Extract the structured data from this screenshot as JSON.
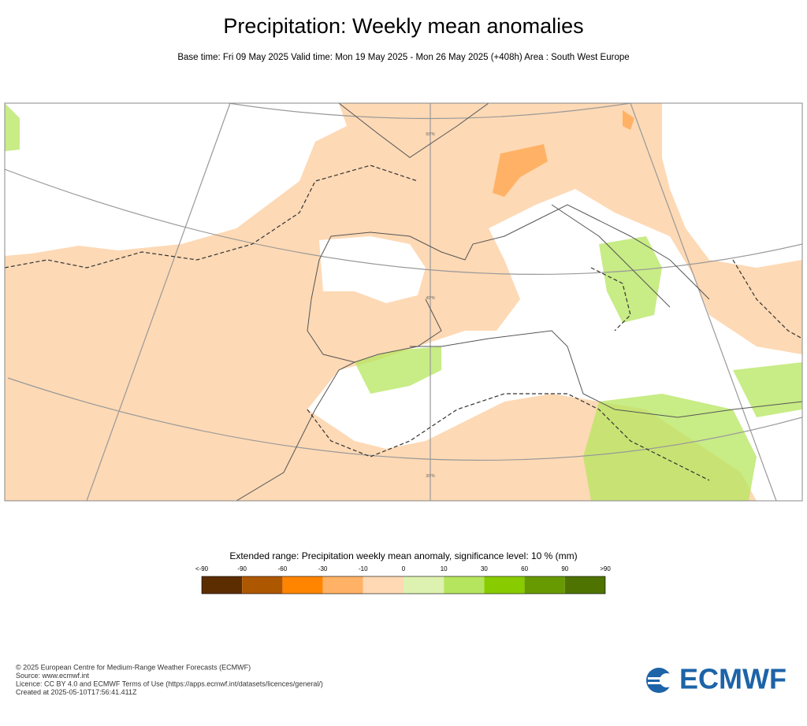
{
  "header": {
    "title": "Precipitation: Weekly mean anomalies",
    "subtitle": "Base time: Fri 09 May 2025 Valid time: Mon 19 May 2025 - Mon 26 May 2025 (+408h) Area : South West Europe"
  },
  "map": {
    "lat_labels": [
      "50°N",
      "40°N",
      "30°N"
    ]
  },
  "legend": {
    "title": "Extended range: Precipitation weekly mean anomaly, significance level: 10 % (mm)",
    "labels": [
      "<-90",
      "-90",
      "-60",
      "-30",
      "-10",
      "0",
      "10",
      "30",
      "60",
      "90",
      ">90"
    ],
    "colors": [
      "#5c2d00",
      "#ad5700",
      "#ff8400",
      "#ffb266",
      "#ffd9b3",
      "#ddf2b0",
      "#b5e55e",
      "#88cc00",
      "#679a00",
      "#4e7300"
    ]
  },
  "footer": {
    "lines": [
      "© 2025 European Centre for Medium-Range Weather Forecasts (ECMWF)",
      "Source: www.ecmwf.int",
      "Licence: CC BY 4.0 and ECMWF Terms of Use (https://apps.ecmwf.int/datasets/licences/general/)",
      "Created at 2025-05-10T17:56:41.411Z"
    ]
  },
  "logo": {
    "text": "ECMWF"
  }
}
